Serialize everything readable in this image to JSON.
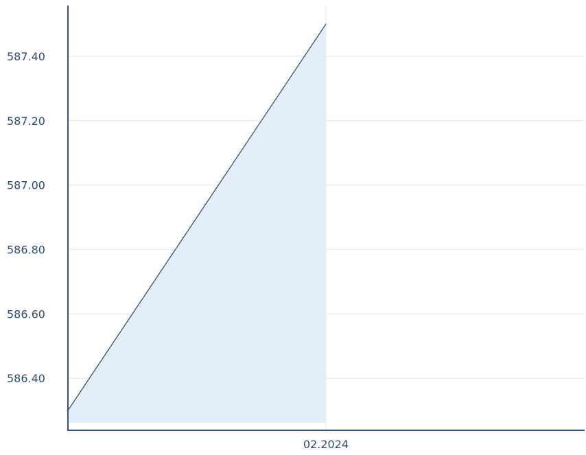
{
  "chart_data": {
    "type": "area",
    "title": "",
    "xlabel": "",
    "ylabel": "",
    "x_tick_labels": [
      "02.2024"
    ],
    "y_tick_labels": [
      "586.40",
      "586.60",
      "586.80",
      "587.00",
      "587.20",
      "587.40"
    ],
    "y_ticks": [
      586.4,
      586.6,
      586.8,
      587.0,
      587.2,
      587.4
    ],
    "ylim": [
      586.24,
      587.56
    ],
    "grid": true,
    "legend": "none",
    "series": [
      {
        "points": [
          {
            "x": "start",
            "y": 586.3
          },
          {
            "x": "02.2024",
            "y": 587.5
          }
        ]
      }
    ],
    "colors": {
      "line": "#34507f",
      "fill": "#e3eef9",
      "axis": "#34507f",
      "grid": "#e6e6e6",
      "tick_text": "#2d4a73"
    }
  }
}
